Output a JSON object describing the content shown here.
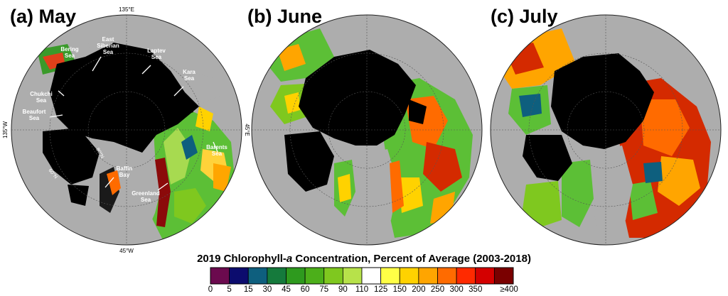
{
  "panels": [
    {
      "title": "(a) May"
    },
    {
      "title": "(b) June"
    },
    {
      "title": "(c) July"
    }
  ],
  "map_labels": {
    "top": "135°E",
    "bottom": "45°W",
    "left": "135°W",
    "right": "45°E",
    "lat80": "80°N",
    "lat60": "60°N"
  },
  "seas": {
    "bering": "Bering\nSea",
    "east_siberian": "East\nSiberian\nSea",
    "laptev": "Laptev\nSea",
    "kara": "Kara\nSea",
    "chukchi": "Chukchi\nSea",
    "beaufort": "Beaufort\nSea",
    "barents": "Barents\nSea",
    "baffin": "Baffin\nBay",
    "greenland": "Greenland\nSea"
  },
  "colorbar": {
    "title_pre": "2019 Chlorophyll-",
    "title_italic": "a",
    "title_post": " Concentration, Percent of Average (2003-2018)",
    "ticks": [
      "0",
      "5",
      "15",
      "30",
      "45",
      "60",
      "75",
      "90",
      "110",
      "125",
      "150",
      "200",
      "250",
      "300",
      "350",
      "≥400"
    ],
    "colors": [
      "#6b0a4e",
      "#0c0c6e",
      "#0e5f7e",
      "#157a3c",
      "#2e9a1e",
      "#4caf1a",
      "#7fc81f",
      "#b7e24a",
      "#ffffff",
      "#ffff46",
      "#ffd200",
      "#ffa500",
      "#ff6b00",
      "#ff2a00",
      "#d40000",
      "#7a0000"
    ]
  },
  "colors": {
    "land": "#adadad",
    "ice": "#000000",
    "ocean_green": "#5fbf3a"
  }
}
